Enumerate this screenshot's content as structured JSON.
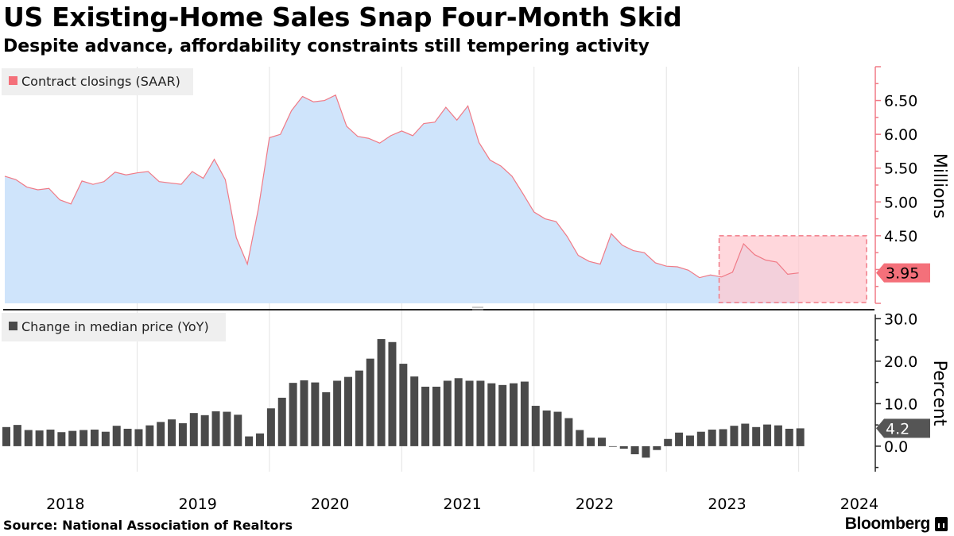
{
  "title": "US Existing-Home Sales Snap Four-Month Skid",
  "subtitle": "Despite advance, affordability constraints still tempering activity",
  "source": "Source: National Association of Realtors",
  "brand": "Bloomberg",
  "colors": {
    "area_fill": "#cfe4fb",
    "area_line": "#f07a86",
    "bar": "#4a4a4a",
    "highlight_fill": "#ffc9d0",
    "highlight_border": "#f07a86",
    "label_red": "#f4707a",
    "label_gray": "#555555",
    "legend_bg": "#efefef"
  },
  "chart_data": [
    {
      "type": "area",
      "legend": "Contract closings (SAAR)",
      "ylabel": "Millions",
      "y_ticks": [
        "6.50",
        "6.00",
        "5.50",
        "5.00",
        "4.50"
      ],
      "y_tick_values": [
        6.5,
        6.0,
        5.5,
        5.0,
        4.5
      ],
      "ylim": [
        3.5,
        7.0
      ],
      "x_start": "2018-01",
      "x_end": "2024-06",
      "values": [
        5.38,
        5.33,
        5.22,
        5.18,
        5.2,
        5.03,
        4.97,
        5.31,
        5.26,
        5.3,
        5.44,
        5.4,
        5.43,
        5.45,
        5.3,
        5.28,
        5.26,
        5.45,
        5.35,
        5.63,
        5.33,
        4.47,
        4.08,
        4.9,
        5.95,
        6.0,
        6.35,
        6.56,
        6.48,
        6.5,
        6.58,
        6.12,
        5.97,
        5.94,
        5.87,
        5.98,
        6.05,
        5.98,
        6.16,
        6.18,
        6.4,
        6.21,
        6.42,
        5.88,
        5.62,
        5.53,
        5.38,
        5.12,
        4.85,
        4.75,
        4.71,
        4.49,
        4.21,
        4.12,
        4.08,
        4.53,
        4.36,
        4.28,
        4.25,
        4.1,
        4.05,
        4.04,
        3.99,
        3.88,
        3.92,
        3.89,
        3.96,
        4.38,
        4.22,
        4.14,
        4.11,
        3.93,
        3.95
      ],
      "last_value_label": "3.95",
      "highlight": {
        "from": "2023-06",
        "to": "2024-06"
      }
    },
    {
      "type": "bar",
      "legend": "Change in median price (YoY)",
      "ylabel": "Percent",
      "y_ticks": [
        "30.0",
        "20.0",
        "10.0",
        "0.0"
      ],
      "y_tick_values": [
        30,
        20,
        10,
        0
      ],
      "ylim": [
        -6,
        31
      ],
      "x_start": "2018-01",
      "x_end": "2024-06",
      "values": [
        4.5,
        5.0,
        3.8,
        3.7,
        3.9,
        3.3,
        3.6,
        3.8,
        3.9,
        3.4,
        4.8,
        4.1,
        4.0,
        4.9,
        5.7,
        6.3,
        5.4,
        7.8,
        7.3,
        8.2,
        8.1,
        7.4,
        2.3,
        3.0,
        8.9,
        11.4,
        14.9,
        15.5,
        15.0,
        12.7,
        15.4,
        16.3,
        17.8,
        20.6,
        25.2,
        24.5,
        19.4,
        16.4,
        14.0,
        14.0,
        15.4,
        16.0,
        15.4,
        15.4,
        14.8,
        14.4,
        14.8,
        15.2,
        9.5,
        8.4,
        8.1,
        6.6,
        3.8,
        2.0,
        2.0,
        -0.1,
        -0.6,
        -1.9,
        -2.7,
        -0.9,
        1.7,
        3.2,
        2.5,
        3.4,
        3.9,
        4.0,
        4.8,
        5.3,
        4.5,
        5.1,
        4.9,
        4.1,
        4.2
      ],
      "last_value_label": "4.2"
    }
  ],
  "x_axis": {
    "years": [
      "2018",
      "2019",
      "2020",
      "2021",
      "2022",
      "2023",
      "2024"
    ]
  }
}
